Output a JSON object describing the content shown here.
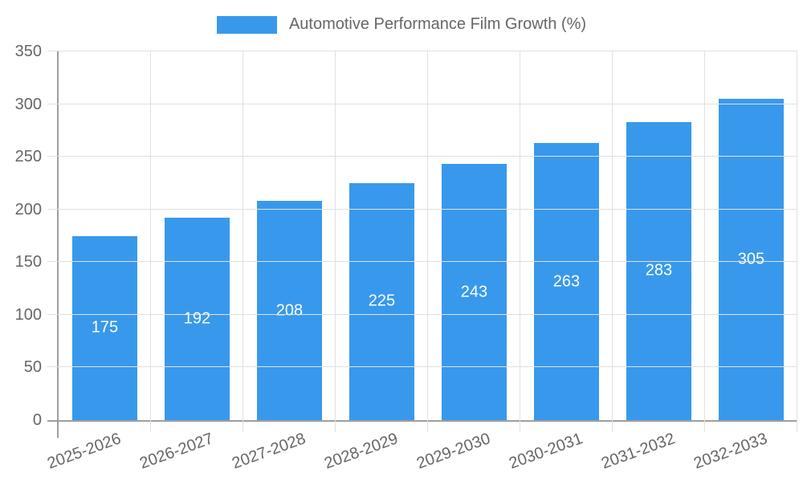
{
  "chart_data": {
    "type": "bar",
    "title": "Automotive Performance Film Growth (%)",
    "categories": [
      "2025-2026",
      "2026-2027",
      "2027-2028",
      "2028-2029",
      "2029-2030",
      "2030-2031",
      "2031-2032",
      "2032-2033"
    ],
    "values": [
      175,
      192,
      208,
      225,
      243,
      263,
      283,
      305
    ],
    "series": [
      {
        "name": "Automotive Performance Film Growth (%)",
        "values": [
          175,
          192,
          208,
          225,
          243,
          263,
          283,
          305
        ]
      }
    ],
    "xlabel": "",
    "ylabel": "",
    "ylim": [
      0,
      350
    ],
    "ytick_step": 50,
    "yticks": [
      0,
      50,
      100,
      150,
      200,
      250,
      300,
      350
    ],
    "grid": true,
    "legend_position": "top",
    "value_label_position": "inside-center",
    "x_label_rotation_deg": -20,
    "colors": {
      "bar": "#3899ec",
      "grid": "#e0e0e0",
      "axis": "#9e9e9e",
      "tick_text": "#666666",
      "value_label": "#ffffff",
      "background": "#ffffff"
    }
  }
}
